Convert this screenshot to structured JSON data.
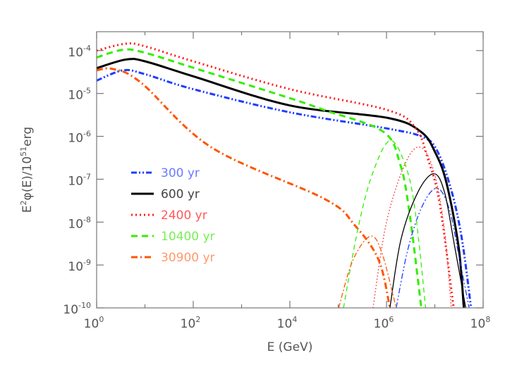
{
  "chart_data": {
    "type": "line",
    "title": "",
    "xlabel": "E (GeV)",
    "ylabel_parts": {
      "base": "E",
      "sup1": "2",
      "mid": "φ(E)/10",
      "sup2": "51",
      "tail": "erg"
    },
    "xscale": "log",
    "yscale": "log",
    "xlim_log10": [
      0,
      8
    ],
    "ylim_log10": [
      -10,
      -3.56
    ],
    "x_ticks": [
      {
        "base": "10",
        "exp": "0",
        "v": 0
      },
      {
        "base": "10",
        "exp": "2",
        "v": 2
      },
      {
        "base": "10",
        "exp": "4",
        "v": 4
      },
      {
        "base": "10",
        "exp": "6",
        "v": 6
      },
      {
        "base": "10",
        "exp": "8",
        "v": 8
      }
    ],
    "y_ticks": [
      {
        "base": "10",
        "exp": "-4",
        "v": -4
      },
      {
        "base": "10",
        "exp": "-5",
        "v": -5
      },
      {
        "base": "10",
        "exp": "-6",
        "v": -6
      },
      {
        "base": "10",
        "exp": "-7",
        "v": -7
      },
      {
        "base": "10",
        "exp": "-8",
        "v": -8
      },
      {
        "base": "10",
        "exp": "-9",
        "v": -9
      },
      {
        "base": "10",
        "exp": "-10",
        "v": -10
      }
    ],
    "legend_position": "left-middle",
    "series": [
      {
        "name": "300 yr",
        "color": "#1f3cff",
        "text_color": "#6b7bff",
        "dash": "8,3,2,3,2,3",
        "legend": true,
        "thick": true,
        "points_log10": [
          [
            0,
            -4.7
          ],
          [
            0.55,
            -4.46
          ],
          [
            1,
            -4.55
          ],
          [
            2,
            -4.9
          ],
          [
            4,
            -5.44
          ],
          [
            6.03,
            -5.82
          ],
          [
            6.76,
            -6.02
          ],
          [
            7.05,
            -6.34
          ],
          [
            7.34,
            -7.25
          ],
          [
            7.56,
            -8.39
          ],
          [
            7.75,
            -10
          ]
        ]
      },
      {
        "name": "600 yr",
        "color": "#000000",
        "text_color": "#444444",
        "dash": "",
        "legend": true,
        "thick": true,
        "points_log10": [
          [
            0,
            -4.41
          ],
          [
            0.6,
            -4.21
          ],
          [
            1,
            -4.25
          ],
          [
            2,
            -4.6
          ],
          [
            4,
            -5.28
          ],
          [
            6.03,
            -5.57
          ],
          [
            6.72,
            -5.9
          ],
          [
            7.01,
            -6.38
          ],
          [
            7.24,
            -7.08
          ],
          [
            7.49,
            -8.56
          ],
          [
            7.6,
            -10
          ]
        ]
      },
      {
        "name": "2400 yr",
        "color": "#ff1a1a",
        "text_color": "#ff5a5a",
        "dash": "2,4",
        "legend": true,
        "thick": true,
        "points_log10": [
          [
            0,
            -4.0
          ],
          [
            0.6,
            -3.84
          ],
          [
            1,
            -3.9
          ],
          [
            2,
            -4.25
          ],
          [
            4,
            -4.9
          ],
          [
            6.03,
            -5.39
          ],
          [
            6.61,
            -5.82
          ],
          [
            6.86,
            -6.54
          ],
          [
            7.1,
            -7.57
          ],
          [
            7.39,
            -10
          ]
        ]
      },
      {
        "name": "10400 yr",
        "color": "#33ee00",
        "text_color": "#77ee55",
        "dash": "9,6",
        "legend": true,
        "thick": true,
        "points_log10": [
          [
            0,
            -4.16
          ],
          [
            0.55,
            -3.98
          ],
          [
            1,
            -4.05
          ],
          [
            2,
            -4.4
          ],
          [
            4,
            -5.11
          ],
          [
            4.72,
            -5.39
          ],
          [
            5.93,
            -5.89
          ],
          [
            6.28,
            -6.64
          ],
          [
            6.47,
            -7.74
          ],
          [
            6.72,
            -10
          ]
        ]
      },
      {
        "name": "30900 yr",
        "color": "#ff5500",
        "text_color": "#ff9a6a",
        "dash": "9,4,2,4",
        "legend": true,
        "thick": true,
        "points_log10": [
          [
            0,
            -4.46
          ],
          [
            0.34,
            -4.43
          ],
          [
            0.92,
            -4.75
          ],
          [
            2.38,
            -6.26
          ],
          [
            4.72,
            -7.46
          ],
          [
            5.34,
            -8.07
          ],
          [
            5.84,
            -8.89
          ],
          [
            6.07,
            -10
          ]
        ]
      },
      {
        "name": "300 yr secondary",
        "color": "#1f3cff",
        "dash": "8,3,2,3,2,3",
        "legend": false,
        "thick": false,
        "points_log10": [
          [
            6.2,
            -10
          ],
          [
            6.45,
            -8.6
          ],
          [
            6.75,
            -7.6
          ],
          [
            7.05,
            -7.21
          ],
          [
            7.3,
            -7.7
          ],
          [
            7.5,
            -8.8
          ],
          [
            7.71,
            -10
          ]
        ]
      },
      {
        "name": "600 yr secondary",
        "color": "#000000",
        "dash": "",
        "legend": false,
        "thick": false,
        "points_log10": [
          [
            6.07,
            -10
          ],
          [
            6.3,
            -8.4
          ],
          [
            6.65,
            -7.3
          ],
          [
            6.98,
            -6.87
          ],
          [
            7.2,
            -7.3
          ],
          [
            7.4,
            -8.5
          ],
          [
            7.64,
            -10
          ]
        ]
      },
      {
        "name": "2400 yr secondary",
        "color": "#ff1a1a",
        "dash": "1.5,3",
        "legend": false,
        "thick": false,
        "points_log10": [
          [
            5.72,
            -10
          ],
          [
            6.0,
            -8.0
          ],
          [
            6.4,
            -6.6
          ],
          [
            6.72,
            -6.26
          ],
          [
            7.0,
            -6.9
          ],
          [
            7.2,
            -8.2
          ],
          [
            7.34,
            -10
          ]
        ]
      },
      {
        "name": "10400 yr secondary",
        "color": "#33ee00",
        "dash": "7,5",
        "legend": false,
        "thick": false,
        "points_log10": [
          [
            5.11,
            -10
          ],
          [
            5.4,
            -8.2
          ],
          [
            5.7,
            -6.9
          ],
          [
            6.07,
            -6.1
          ],
          [
            6.4,
            -6.7
          ],
          [
            6.6,
            -7.8
          ],
          [
            6.81,
            -10
          ]
        ]
      },
      {
        "name": "30900 yr secondary",
        "color": "#ff5500",
        "dash": "7,3,2,3",
        "legend": false,
        "thick": false,
        "points_log10": [
          [
            5.01,
            -10
          ],
          [
            5.3,
            -8.9
          ],
          [
            5.66,
            -8.33
          ],
          [
            5.9,
            -8.7
          ],
          [
            6.2,
            -10
          ]
        ]
      }
    ]
  }
}
